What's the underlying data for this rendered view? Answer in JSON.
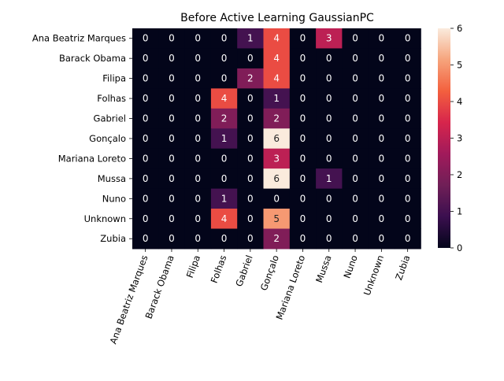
{
  "chart_data": {
    "type": "heatmap",
    "title": "Before Active Learning GaussianPC",
    "row_labels": [
      "Ana Beatriz Marques",
      "Barack Obama",
      "Filipa",
      "Folhas",
      "Gabriel",
      "Gonçalo",
      "Mariana Loreto",
      "Mussa",
      "Nuno",
      "Unknown",
      "Zubia"
    ],
    "col_labels": [
      "Ana Beatriz Marques",
      "Barack Obama",
      "Filipa",
      "Folhas",
      "Gabriel",
      "Gonçalo",
      "Mariana Loreto",
      "Mussa",
      "Nuno",
      "Unknown",
      "Zubia"
    ],
    "values": [
      [
        0,
        0,
        0,
        0,
        1,
        4,
        0,
        3,
        0,
        0,
        0
      ],
      [
        0,
        0,
        0,
        0,
        0,
        4,
        0,
        0,
        0,
        0,
        0
      ],
      [
        0,
        0,
        0,
        0,
        2,
        4,
        0,
        0,
        0,
        0,
        0
      ],
      [
        0,
        0,
        0,
        4,
        0,
        1,
        0,
        0,
        0,
        0,
        0
      ],
      [
        0,
        0,
        0,
        2,
        0,
        2,
        0,
        0,
        0,
        0,
        0
      ],
      [
        0,
        0,
        0,
        1,
        0,
        6,
        0,
        0,
        0,
        0,
        0
      ],
      [
        0,
        0,
        0,
        0,
        0,
        3,
        0,
        0,
        0,
        0,
        0
      ],
      [
        0,
        0,
        0,
        0,
        0,
        6,
        0,
        1,
        0,
        0,
        0
      ],
      [
        0,
        0,
        0,
        1,
        0,
        0,
        0,
        0,
        0,
        0,
        0
      ],
      [
        0,
        0,
        0,
        4,
        0,
        5,
        0,
        0,
        0,
        0,
        0
      ],
      [
        0,
        0,
        0,
        0,
        0,
        2,
        0,
        0,
        0,
        0,
        0
      ]
    ],
    "colorbar": {
      "min": 0,
      "max": 6,
      "ticks": [
        0,
        1,
        2,
        3,
        4,
        5,
        6
      ]
    },
    "colormap": "rocket",
    "colormap_stops": [
      "#03051a",
      "#3b0f4f",
      "#701f57",
      "#a11a5b",
      "#d7254c",
      "#f3603e",
      "#f6a47c",
      "#faebdd"
    ]
  }
}
